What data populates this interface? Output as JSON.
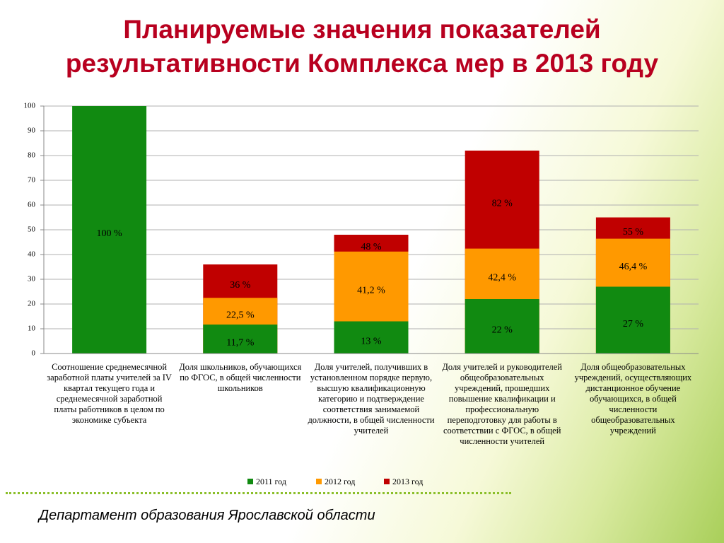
{
  "chart_data": {
    "type": "bar",
    "overlap": true,
    "title": "Планируемые значения показателей\nрезультативности Комплекса мер в 2013 году",
    "categories": [
      "Соотношение среднемесячной заработной платы учителей за IV квартал текущего года и среднемесячной заработной платы работников в целом по экономике субъекта",
      "Доля школьников, обучающихся по ФГОС, в общей численности школьников",
      "Доля учителей, получивших в установленном порядке первую, высшую квалификационную категорию и подтверждение соответствия занимаемой должности, в общей численности учителей",
      "Доля учителей и руководителей общеобразовательных учреждений, прошедших повышение квалификации и профессиональную переподготовку для работы в соответствии с ФГОС, в общей численности учителей",
      "Доля общеобразовательных учреждений, осуществляющих дистанционное обучение обучающихся, в общей численности общеобразовательных учреждений"
    ],
    "series": [
      {
        "name": "2011 год",
        "color": "#118a11",
        "values": [
          100,
          11.7,
          13,
          22,
          27
        ],
        "value_labels": [
          "100 %",
          "11,7 %",
          "13 %",
          "22 %",
          "27 %"
        ]
      },
      {
        "name": "2012 год",
        "color": "#ff9900",
        "values": [
          null,
          22.5,
          41.2,
          42.4,
          46.4
        ],
        "value_labels": [
          null,
          "22,5 %",
          "41,2 %",
          "42,4 %",
          "46,4 %"
        ]
      },
      {
        "name": "2013 год",
        "color": "#c00000",
        "values": [
          null,
          36,
          48,
          82,
          55
        ],
        "value_labels": [
          null,
          "36 %",
          "48 %",
          "82 %",
          "55 %"
        ]
      }
    ],
    "ylim": [
      0,
      100
    ],
    "yticks": [
      0,
      10,
      20,
      30,
      40,
      50,
      60,
      70,
      80,
      90,
      100
    ],
    "grid": true,
    "legend": "bottom"
  },
  "footer": "Департамент образования Ярославской области"
}
